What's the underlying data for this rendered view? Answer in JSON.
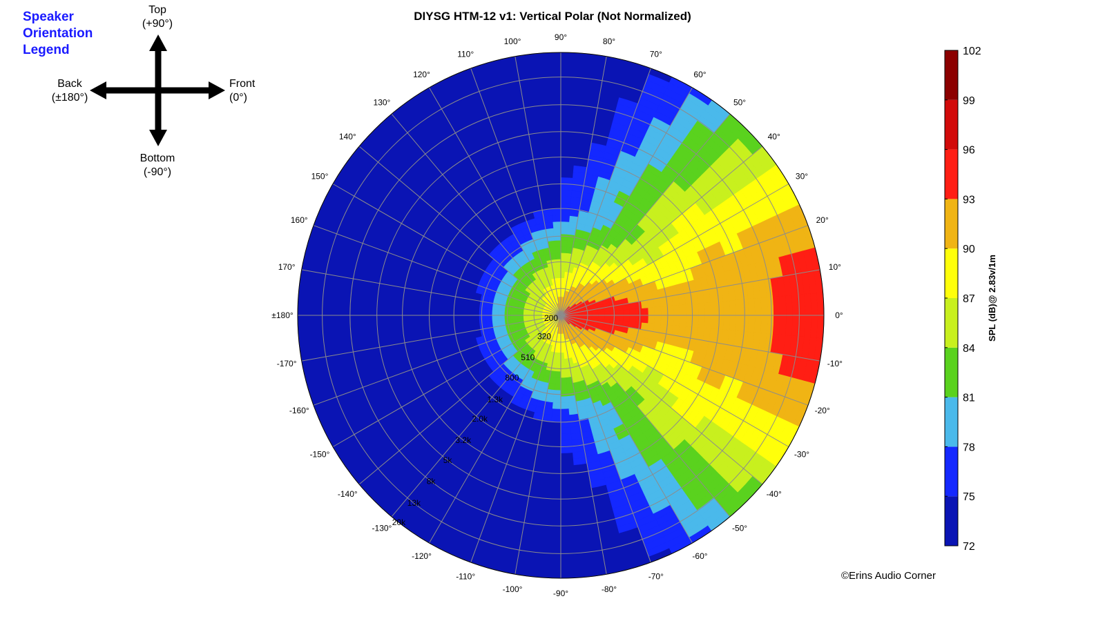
{
  "title": "DIYSG HTM-12 v1: Vertical Polar (Not Normalized)",
  "copyright": "©Erins Audio Corner",
  "orientation_legend": {
    "title_lines": [
      "Speaker",
      "Orientation",
      "Legend"
    ],
    "top": [
      "Top",
      "(+90°)"
    ],
    "bottom": [
      "Bottom",
      "(-90°)"
    ],
    "back": [
      "Back",
      "(±180°)"
    ],
    "front": [
      "Front",
      "(0°)"
    ]
  },
  "colors": {
    "title_legend": "#1a1aff",
    "grid": "#8c8c8c",
    "bands": [
      "#0a14b4",
      "#1428ff",
      "#4ab9eb",
      "#5ad21e",
      "#c8f01e",
      "#ffff0a",
      "#f0b414",
      "#ff1e14",
      "#d20a0a",
      "#8c0000"
    ]
  },
  "chart_data": {
    "type": "heatmap",
    "subtype": "polar",
    "title": "DIYSG HTM-12 v1: Vertical Polar (Not Normalized)",
    "angle_unit": "deg",
    "angle_ticks": [
      "0°",
      "10°",
      "20°",
      "30°",
      "40°",
      "50°",
      "60°",
      "70°",
      "80°",
      "90°",
      "100°",
      "110°",
      "120°",
      "130°",
      "140°",
      "150°",
      "160°",
      "170°",
      "±180°",
      "-170°",
      "-160°",
      "-150°",
      "-140°",
      "-130°",
      "-120°",
      "-110°",
      "-100°",
      "-90°",
      "-80°",
      "-70°",
      "-60°",
      "-50°",
      "-40°",
      "-30°",
      "-20°",
      "-10°"
    ],
    "radial_axis": "frequency (Hz, log)",
    "radial_ticks": [
      "200",
      "320",
      "510",
      "800",
      "1.3k",
      "2.0k",
      "3.2k",
      "5k",
      "8k",
      "13k",
      "20k"
    ],
    "radial_range_hz": [
      200,
      20000
    ],
    "colorbar": {
      "label": "SPL (dB)@ 2.83v/1m",
      "min": 72,
      "max": 102,
      "ticks": [
        "102",
        "99",
        "96",
        "93",
        "90",
        "87",
        "84",
        "81",
        "78",
        "75",
        "72"
      ]
    },
    "levels_db_approx": {
      "note": "SPL by frequency (Hz) and angle (deg); 0° = front",
      "angles_deg": [
        0,
        10,
        20,
        30,
        40,
        50,
        60,
        70,
        80,
        90,
        110,
        130,
        150,
        180
      ],
      "rows": [
        {
          "freq_hz": 250,
          "spl": [
            95,
            95,
            94,
            94,
            93,
            93,
            92,
            92,
            91,
            91,
            90,
            89,
            88,
            88
          ]
        },
        {
          "freq_hz": 500,
          "spl": [
            95,
            94,
            93,
            91,
            90,
            89,
            88,
            87,
            86,
            85,
            84,
            83,
            82,
            82
          ]
        },
        {
          "freq_hz": 800,
          "spl": [
            94,
            93,
            91,
            89,
            87,
            85,
            84,
            83,
            82,
            81,
            79,
            77,
            76,
            75
          ]
        },
        {
          "freq_hz": 1300,
          "spl": [
            92,
            91,
            89,
            87,
            85,
            83,
            81,
            79,
            77,
            75,
            74,
            73,
            73,
            73
          ]
        },
        {
          "freq_hz": 2000,
          "spl": [
            91,
            91,
            89,
            88,
            86,
            84,
            82,
            79,
            77,
            75,
            73,
            73,
            73,
            73
          ]
        },
        {
          "freq_hz": 3200,
          "spl": [
            92,
            92,
            91,
            89,
            87,
            84,
            81,
            78,
            75,
            73,
            73,
            73,
            73,
            73
          ]
        },
        {
          "freq_hz": 5000,
          "spl": [
            91,
            91,
            90,
            89,
            86,
            83,
            80,
            77,
            74,
            73,
            73,
            73,
            73,
            73
          ]
        },
        {
          "freq_hz": 8000,
          "spl": [
            93,
            93,
            91,
            89,
            86,
            83,
            79,
            76,
            74,
            73,
            73,
            73,
            73,
            73
          ]
        },
        {
          "freq_hz": 13000,
          "spl": [
            95,
            94,
            92,
            89,
            86,
            82,
            78,
            75,
            73,
            73,
            73,
            73,
            73,
            73
          ]
        },
        {
          "freq_hz": 20000,
          "spl": [
            96,
            95,
            92,
            88,
            84,
            80,
            77,
            74,
            73,
            73,
            73,
            73,
            73,
            73
          ]
        }
      ]
    }
  }
}
